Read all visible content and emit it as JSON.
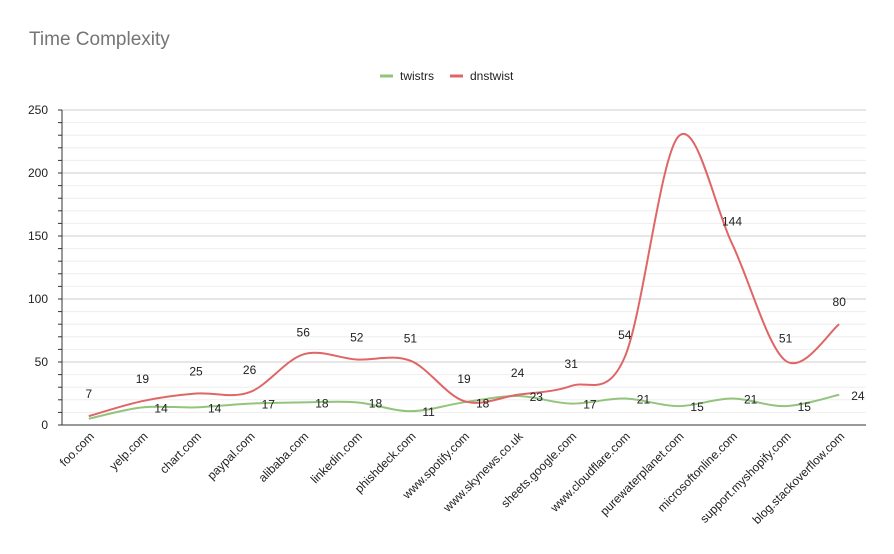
{
  "chart_data": {
    "type": "line",
    "title": "Time Complexity",
    "categories": [
      "foo.com",
      "yelp.com",
      "chart.com",
      "paypal.com",
      "alibaba.com",
      "linkedin.com",
      "phishdeck.com",
      "www.spotify.com",
      "www.skynews.co.uk",
      "sheets.google.com",
      "www.cloudflare.com",
      "purewaterplanet.com",
      "microsoftonline.com",
      "support.myshopify.com",
      "blog.stackoverflow.com"
    ],
    "series": [
      {
        "name": "twistrs",
        "color": "#93c47d",
        "values": [
          5,
          14,
          14,
          17,
          18,
          18,
          11,
          18,
          23,
          17,
          21,
          15,
          21,
          15,
          24
        ],
        "labels": [
          "",
          "14",
          "14",
          "17",
          "18",
          "18",
          "11",
          "18",
          "23",
          "17",
          "21",
          "15",
          "21",
          "15",
          "24"
        ]
      },
      {
        "name": "dnstwist",
        "color": "#e06666",
        "values": [
          7,
          19,
          25,
          26,
          56,
          52,
          51,
          19,
          24,
          31,
          54,
          229,
          144,
          51,
          80
        ],
        "labels": [
          "7",
          "19",
          "25",
          "26",
          "56",
          "52",
          "51",
          "19",
          "24",
          "31",
          "54",
          "",
          "144",
          "51",
          "80"
        ]
      }
    ],
    "yticks": [
      "0",
      "50",
      "100",
      "150",
      "200",
      "250"
    ],
    "ylim": [
      0,
      250
    ],
    "legend_position": "top-center",
    "grid": true
  }
}
